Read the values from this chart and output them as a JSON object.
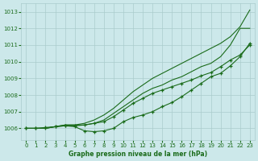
{
  "background_color": "#cce8ea",
  "grid_color": "#aacccc",
  "line_color": "#1a6b1a",
  "title": "Graphe pression niveau de la mer (hPa)",
  "xlim": [
    -0.5,
    23.5
  ],
  "ylim": [
    1005.3,
    1013.5
  ],
  "yticks": [
    1006,
    1007,
    1008,
    1009,
    1010,
    1011,
    1012,
    1013
  ],
  "xticks": [
    0,
    1,
    2,
    3,
    4,
    5,
    6,
    7,
    8,
    9,
    10,
    11,
    12,
    13,
    14,
    15,
    16,
    17,
    18,
    19,
    20,
    21,
    22,
    23
  ],
  "series": [
    {
      "name": "line1_high",
      "y": [
        1006.0,
        1006.0,
        1006.0,
        1006.1,
        1006.2,
        1006.2,
        1006.3,
        1006.5,
        1006.8,
        1007.2,
        1007.7,
        1008.2,
        1008.6,
        1009.0,
        1009.3,
        1009.6,
        1009.9,
        1010.2,
        1010.5,
        1010.8,
        1011.1,
        1011.5,
        1012.1,
        1013.1
      ],
      "has_markers": false
    },
    {
      "name": "line2_medium_high",
      "y": [
        1006.0,
        1006.0,
        1006.0,
        1006.1,
        1006.2,
        1006.2,
        1006.2,
        1006.3,
        1006.5,
        1006.9,
        1007.3,
        1007.7,
        1008.1,
        1008.4,
        1008.6,
        1008.9,
        1009.1,
        1009.4,
        1009.7,
        1009.9,
        1010.3,
        1011.0,
        1012.0,
        1012.0
      ],
      "has_markers": false
    },
    {
      "name": "line3_medium",
      "y": [
        1006.0,
        1006.0,
        1006.0,
        1006.1,
        1006.15,
        1006.15,
        1006.2,
        1006.3,
        1006.4,
        1006.7,
        1007.1,
        1007.5,
        1007.8,
        1008.1,
        1008.3,
        1008.5,
        1008.7,
        1008.9,
        1009.15,
        1009.35,
        1009.7,
        1010.1,
        1010.4,
        1011.0
      ],
      "has_markers": true
    },
    {
      "name": "line4_low_dip",
      "y": [
        1006.0,
        1006.0,
        1006.05,
        1006.1,
        1006.15,
        1006.1,
        1005.85,
        1005.8,
        1005.85,
        1006.0,
        1006.4,
        1006.65,
        1006.8,
        1007.0,
        1007.3,
        1007.55,
        1007.9,
        1008.3,
        1008.7,
        1009.1,
        1009.3,
        1009.75,
        1010.3,
        1011.1
      ],
      "has_markers": true
    }
  ]
}
